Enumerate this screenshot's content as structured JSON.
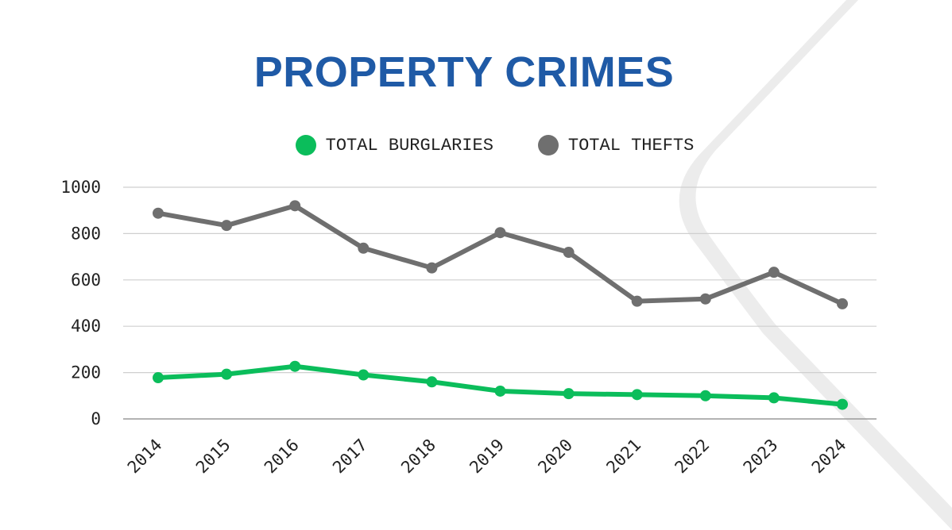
{
  "chart_data": {
    "type": "line",
    "title": "PROPERTY CRIMES",
    "x": [
      "2014",
      "2015",
      "2016",
      "2017",
      "2018",
      "2019",
      "2020",
      "2021",
      "2022",
      "2023",
      "2024"
    ],
    "series": [
      {
        "name": "TOTAL BURGLARIES",
        "color": "#0bbd5b",
        "values": [
          178,
          193,
          227,
          190,
          160,
          120,
          109,
          105,
          100,
          91,
          63
        ]
      },
      {
        "name": "TOTAL THEFTS",
        "color": "#6f6f6f",
        "values": [
          888,
          835,
          920,
          737,
          652,
          804,
          719,
          508,
          518,
          633,
          497
        ]
      }
    ],
    "yticks": [
      "0",
      "200",
      "400",
      "600",
      "800",
      "1000"
    ],
    "ylim": [
      0,
      1000
    ],
    "grid": true,
    "legend_position": "top-center"
  },
  "colors": {
    "title": "#1f5aa6",
    "grid": "#cfcfcf"
  }
}
